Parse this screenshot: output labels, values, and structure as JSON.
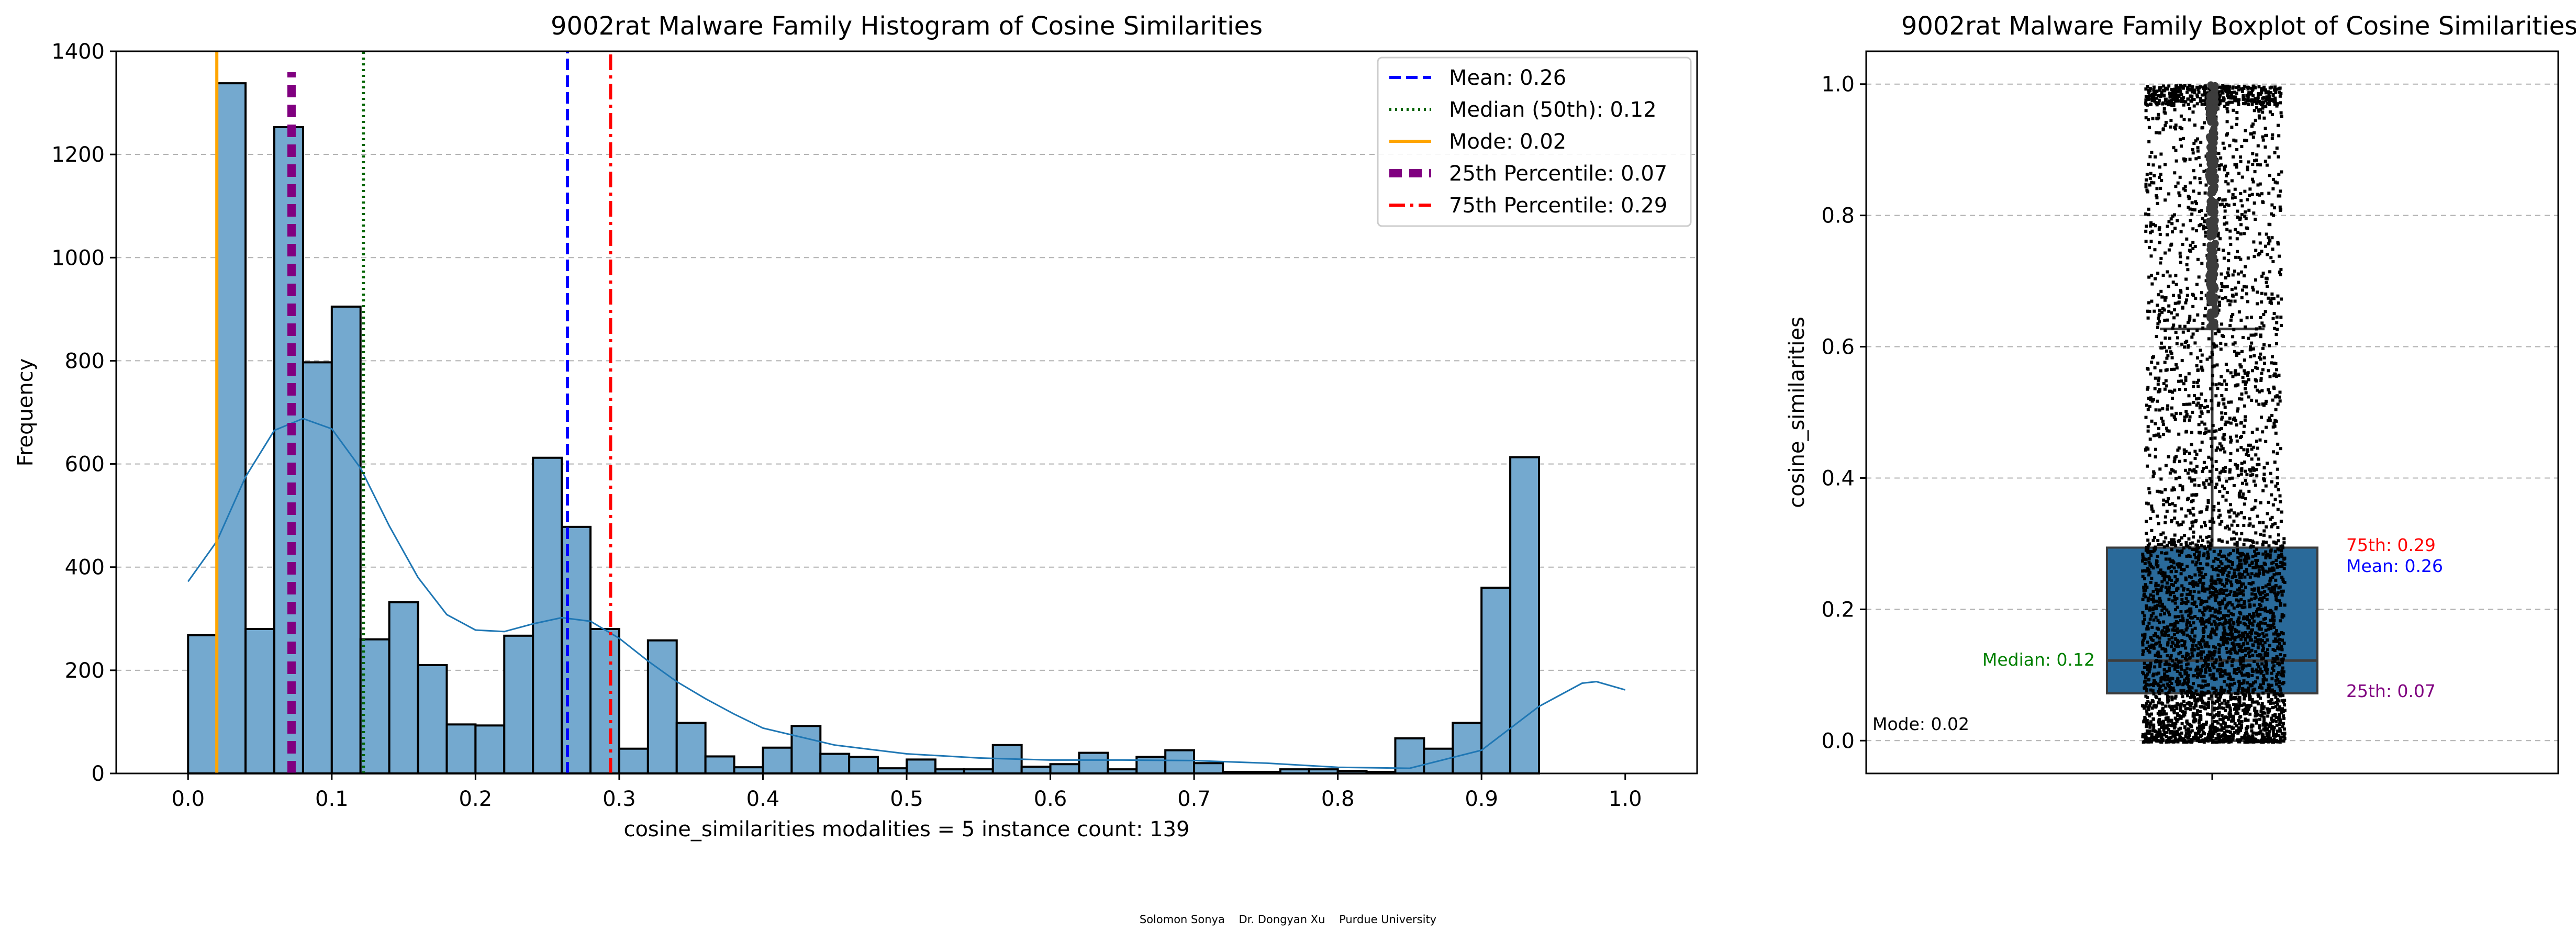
{
  "footer": "Solomon Sonya    Dr. Dongyan Xu    Purdue University",
  "chart_data": [
    {
      "type": "bar",
      "title": "9002rat Malware Family Histogram of Cosine Similarities",
      "xlabel": "cosine_similarities    modalities = 5    instance count: 139",
      "ylabel": "Frequency",
      "xlim": [
        -0.05,
        1.05
      ],
      "ylim": [
        0,
        1400
      ],
      "xticks": [
        0.0,
        0.1,
        0.2,
        0.3,
        0.4,
        0.5,
        0.6,
        0.7,
        0.8,
        0.9,
        1.0
      ],
      "xtick_labels": [
        "0.0",
        "0.1",
        "0.2",
        "0.3",
        "0.4",
        "0.5",
        "0.6",
        "0.7",
        "0.8",
        "0.9",
        "1.0"
      ],
      "yticks": [
        0,
        200,
        400,
        600,
        800,
        1000,
        1200,
        1400
      ],
      "ytick_labels": [
        "0",
        "200",
        "400",
        "600",
        "800",
        "1000",
        "1200",
        "1400"
      ],
      "grid": "y",
      "legend_position": "upper right",
      "bin_start": 0.0,
      "bin_width": 0.02,
      "values": [
        268,
        1338,
        280,
        1253,
        797,
        905,
        260,
        332,
        210,
        95,
        93,
        267,
        612,
        478,
        280,
        48,
        258,
        98,
        33,
        12,
        50,
        92,
        38,
        32,
        10,
        27,
        8,
        8,
        55,
        13,
        18,
        40,
        8,
        32,
        45,
        20,
        3,
        3,
        8,
        8,
        5,
        3,
        68,
        48,
        98,
        360,
        613
      ],
      "kde_curve": [
        [
          0.0,
          372
        ],
        [
          0.02,
          450
        ],
        [
          0.04,
          575
        ],
        [
          0.06,
          665
        ],
        [
          0.08,
          688
        ],
        [
          0.1,
          668
        ],
        [
          0.12,
          592
        ],
        [
          0.14,
          480
        ],
        [
          0.16,
          380
        ],
        [
          0.18,
          308
        ],
        [
          0.2,
          278
        ],
        [
          0.22,
          275
        ],
        [
          0.24,
          290
        ],
        [
          0.26,
          302
        ],
        [
          0.28,
          295
        ],
        [
          0.3,
          262
        ],
        [
          0.32,
          218
        ],
        [
          0.34,
          178
        ],
        [
          0.36,
          145
        ],
        [
          0.38,
          115
        ],
        [
          0.4,
          88
        ],
        [
          0.45,
          55
        ],
        [
          0.5,
          38
        ],
        [
          0.55,
          30
        ],
        [
          0.6,
          26
        ],
        [
          0.65,
          26
        ],
        [
          0.7,
          25
        ],
        [
          0.75,
          20
        ],
        [
          0.8,
          12
        ],
        [
          0.85,
          10
        ],
        [
          0.9,
          45
        ],
        [
          0.94,
          130
        ],
        [
          0.97,
          175
        ],
        [
          0.98,
          178
        ],
        [
          1.0,
          162
        ]
      ],
      "bar_color": "#74a9cf",
      "reference_lines": [
        {
          "label": "Mean: 0.26",
          "x": 0.264,
          "color": "#0000ff",
          "style": "dashed"
        },
        {
          "label": "Median (50th): 0.12",
          "x": 0.122,
          "color": "#006400",
          "style": "dotted"
        },
        {
          "label": "Mode: 0.02",
          "x": 0.02,
          "color": "#ffa500",
          "style": "solid"
        },
        {
          "label": "25th Percentile: 0.07",
          "x": 0.072,
          "color": "#800080",
          "style": "thick-dashed"
        },
        {
          "label": "75th Percentile: 0.29",
          "x": 0.294,
          "color": "#ff0000",
          "style": "dashdot"
        }
      ]
    },
    {
      "type": "boxplot",
      "title": "9002rat Malware Family Boxplot of Cosine Similarities",
      "ylabel": "cosine_similarities",
      "ylim": [
        -0.05,
        1.05
      ],
      "yticks": [
        0.0,
        0.2,
        0.4,
        0.6,
        0.8,
        1.0
      ],
      "ytick_labels": [
        "0.0",
        "0.2",
        "0.4",
        "0.6",
        "0.8",
        "1.0"
      ],
      "grid": "y",
      "box": {
        "q1": 0.072,
        "median": 0.122,
        "q3": 0.294,
        "whisker_low": 0.0,
        "whisker_high": 0.627,
        "color": "#2a6a9a"
      },
      "annotations": [
        {
          "text": "75th: 0.29",
          "color": "#ff0000"
        },
        {
          "text": "Mean: 0.26",
          "color": "#0000ff"
        },
        {
          "text": "Median: 0.12",
          "color": "#008000"
        },
        {
          "text": "25th: 0.07",
          "color": "#800080"
        },
        {
          "text": "Mode: 0.02",
          "color": "#000000"
        }
      ]
    }
  ]
}
